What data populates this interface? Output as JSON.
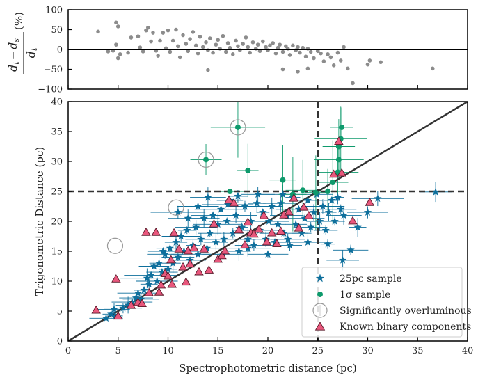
{
  "chart_data": [
    {
      "panel": "residuals",
      "type": "scatter",
      "ylabel": "d_t − d_s / d_t (%)",
      "ylabel_parts": {
        "numerator": "d",
        "num_sub1": "t",
        "minus": "−",
        "num_d2": "d",
        "num_sub2": "s",
        "denominator": "d",
        "den_sub": "t",
        "unit": "(%)"
      },
      "xlim": [
        0,
        40
      ],
      "ylim": [
        -100,
        100
      ],
      "yticks": [
        100,
        50,
        0,
        -50,
        -100
      ],
      "ytick_labels": [
        "100",
        "50",
        "0",
        "−50",
        "−100"
      ],
      "reference_line_y": 0,
      "colors": {
        "points": "#8c8c8c",
        "zero_line": "#000000"
      },
      "points": [
        [
          3,
          45
        ],
        [
          4,
          -5
        ],
        [
          4.5,
          -3
        ],
        [
          4.8,
          12
        ],
        [
          4.8,
          68
        ],
        [
          5,
          58
        ],
        [
          5,
          -22
        ],
        [
          5.2,
          -12
        ],
        [
          6,
          -8
        ],
        [
          6.3,
          30
        ],
        [
          7,
          33
        ],
        [
          7.2,
          5
        ],
        [
          7.5,
          -5
        ],
        [
          7.8,
          48
        ],
        [
          8,
          55
        ],
        [
          8.3,
          20
        ],
        [
          8.5,
          42
        ],
        [
          8.8,
          -3
        ],
        [
          9,
          -16
        ],
        [
          9.2,
          22
        ],
        [
          9.5,
          42
        ],
        [
          9.8,
          3
        ],
        [
          10,
          48
        ],
        [
          10.2,
          -6
        ],
        [
          10.5,
          22
        ],
        [
          10.8,
          50
        ],
        [
          11,
          8
        ],
        [
          11.2,
          -20
        ],
        [
          11.5,
          36
        ],
        [
          11.8,
          14
        ],
        [
          12,
          -4
        ],
        [
          12.2,
          26
        ],
        [
          12.5,
          44
        ],
        [
          12.8,
          10
        ],
        [
          13,
          -10
        ],
        [
          13.2,
          32
        ],
        [
          13.5,
          6
        ],
        [
          13.8,
          18
        ],
        [
          14,
          -2
        ],
        [
          14.2,
          28
        ],
        [
          14.5,
          -8
        ],
        [
          14.8,
          12
        ],
        [
          15,
          24
        ],
        [
          15.2,
          2
        ],
        [
          15.5,
          34
        ],
        [
          15.8,
          -6
        ],
        [
          16,
          16
        ],
        [
          16.2,
          4
        ],
        [
          16.5,
          -12
        ],
        [
          16.8,
          22
        ],
        [
          17,
          8
        ],
        [
          17.2,
          -2
        ],
        [
          17.5,
          14
        ],
        [
          17.8,
          30
        ],
        [
          18,
          6
        ],
        [
          18.2,
          -8
        ],
        [
          18.5,
          18
        ],
        [
          18.8,
          2
        ],
        [
          19,
          12
        ],
        [
          19.2,
          -4
        ],
        [
          19.5,
          20
        ],
        [
          19.8,
          6
        ],
        [
          20,
          -2
        ],
        [
          20.2,
          10
        ],
        [
          20.5,
          16
        ],
        [
          20.8,
          -10
        ],
        [
          21,
          4
        ],
        [
          21.2,
          12
        ],
        [
          21.5,
          -6
        ],
        [
          21.8,
          8
        ],
        [
          22,
          2
        ],
        [
          22.2,
          -14
        ],
        [
          22.5,
          10
        ],
        [
          22.8,
          -2
        ],
        [
          23,
          6
        ],
        [
          23.2,
          -8
        ],
        [
          23.5,
          4
        ],
        [
          23.8,
          -18
        ],
        [
          24,
          2
        ],
        [
          24.3,
          -6
        ],
        [
          24.6,
          -22
        ],
        [
          25,
          -4
        ],
        [
          25.3,
          -10
        ],
        [
          25.6,
          -30
        ],
        [
          26,
          -12
        ],
        [
          26.3,
          -20
        ],
        [
          26.6,
          -40
        ],
        [
          27,
          -8
        ],
        [
          27.3,
          -28
        ],
        [
          27.6,
          6
        ],
        [
          28,
          -48
        ],
        [
          28.5,
          -85
        ],
        [
          30,
          -38
        ],
        [
          30.2,
          -28
        ],
        [
          31.3,
          -32
        ],
        [
          36.5,
          -48
        ],
        [
          14,
          -52
        ],
        [
          21.5,
          -50
        ],
        [
          23,
          -56
        ],
        [
          24,
          -48
        ]
      ]
    },
    {
      "panel": "main",
      "type": "scatter",
      "xlabel": "Spectrophotometric distance (pc)",
      "ylabel": "Trigonometric Distance (pc)",
      "xlim": [
        0,
        40
      ],
      "ylim": [
        0,
        40
      ],
      "xticks": [
        0,
        5,
        10,
        15,
        20,
        25,
        30,
        35,
        40
      ],
      "yticks": [
        0,
        5,
        10,
        15,
        20,
        25,
        30,
        35,
        40
      ],
      "one_to_one_line": true,
      "cut_lines": {
        "x": 25,
        "y": 25
      },
      "legend_position": "lower-right",
      "colors": {
        "sample_25pc": "#0e6f9c",
        "sample_1sigma": "#0e9a6c",
        "binary": "#e8577c",
        "binary_edge": "#5a1a2a",
        "overluminous": "#999999",
        "line": "#333333"
      },
      "series": [
        {
          "name": "25pc sample",
          "marker": "star",
          "points": [
            [
              3.8,
              3.8
            ],
            [
              4.3,
              4.5
            ],
            [
              4.6,
              5.3
            ],
            [
              4.7,
              4.2
            ],
            [
              5.5,
              5.5
            ],
            [
              6,
              6
            ],
            [
              6.4,
              6.5
            ],
            [
              6.8,
              7.2
            ],
            [
              7,
              8
            ],
            [
              7.3,
              7
            ],
            [
              7.6,
              8.5
            ],
            [
              7.9,
              10.5
            ],
            [
              8.1,
              9.5
            ],
            [
              8.3,
              11
            ],
            [
              8.6,
              12.5
            ],
            [
              8.9,
              10
            ],
            [
              9.1,
              13
            ],
            [
              9.4,
              11.5
            ],
            [
              9.7,
              14.5
            ],
            [
              10,
              12
            ],
            [
              10.2,
              15.5
            ],
            [
              10.5,
              13
            ],
            [
              10.8,
              16.5
            ],
            [
              11,
              14
            ],
            [
              11.3,
              17.5
            ],
            [
              11.6,
              15
            ],
            [
              11.9,
              18.5
            ],
            [
              12.2,
              13.5
            ],
            [
              12.5,
              16
            ],
            [
              12.8,
              19
            ],
            [
              13,
              14.5
            ],
            [
              13.3,
              17
            ],
            [
              13.6,
              20.5
            ],
            [
              13.9,
              15.5
            ],
            [
              14.2,
              18
            ],
            [
              14.5,
              21
            ],
            [
              14.8,
              16.5
            ],
            [
              15,
              19.5
            ],
            [
              15.3,
              22
            ],
            [
              15.6,
              17
            ],
            [
              15.9,
              20
            ],
            [
              16.2,
              23.5
            ],
            [
              16.5,
              18
            ],
            [
              16.8,
              21
            ],
            [
              17.1,
              15
            ],
            [
              17.4,
              19
            ],
            [
              17.7,
              22.5
            ],
            [
              18,
              17
            ],
            [
              18.3,
              20
            ],
            [
              18.6,
              16
            ],
            [
              18.9,
              23
            ],
            [
              19.2,
              18.5
            ],
            [
              19.5,
              21.5
            ],
            [
              19.8,
              17
            ],
            [
              20.1,
              20
            ],
            [
              20.4,
              22.5
            ],
            [
              20.7,
              16.5
            ],
            [
              21,
              19.5
            ],
            [
              21.3,
              23
            ],
            [
              21.6,
              18
            ],
            [
              21.9,
              21
            ],
            [
              22.2,
              16
            ],
            [
              22.5,
              24
            ],
            [
              22.8,
              19.5
            ],
            [
              23.1,
              22
            ],
            [
              23.4,
              18
            ],
            [
              23.7,
              20.5
            ],
            [
              24,
              23.5
            ],
            [
              24.3,
              19
            ],
            [
              24.6,
              21.5
            ],
            [
              24.9,
              24.5
            ],
            [
              25.2,
              20
            ],
            [
              25.5,
              22.5
            ],
            [
              25.8,
              18.5
            ],
            [
              26.1,
              21.5
            ],
            [
              26.4,
              23.5
            ],
            [
              26.7,
              20
            ],
            [
              27,
              24
            ],
            [
              27.3,
              22
            ],
            [
              27.6,
              21
            ],
            [
              28.3,
              15.2
            ],
            [
              29,
              19
            ],
            [
              30,
              21.5
            ],
            [
              31,
              23.8
            ],
            [
              36.8,
              24.9
            ],
            [
              16,
              22.8
            ],
            [
              19,
              24.5
            ],
            [
              21.5,
              24.5
            ],
            [
              14,
              24
            ],
            [
              12,
              20.5
            ],
            [
              9.5,
              15
            ],
            [
              11,
              21.5
            ],
            [
              15.5,
              14.5
            ],
            [
              18,
              15.5
            ],
            [
              22,
              17
            ],
            [
              24,
              16.5
            ],
            [
              26,
              16.2
            ],
            [
              27.5,
              13.5
            ],
            [
              20,
              14.5
            ],
            [
              13,
              22.5
            ],
            [
              17,
              24.2
            ]
          ]
        },
        {
          "name": "1σ sample",
          "marker": "circle",
          "points": [
            [
              13.8,
              30.3
            ],
            [
              17,
              35.7
            ],
            [
              18,
              28.5
            ],
            [
              21.5,
              26.9
            ],
            [
              22.5,
              24.5
            ],
            [
              26.5,
              26.5
            ],
            [
              27,
              28.2
            ],
            [
              27.1,
              30.3
            ],
            [
              27.1,
              32.5
            ],
            [
              27.3,
              33.8
            ],
            [
              27.4,
              35.7
            ],
            [
              26,
              25
            ],
            [
              23.5,
              25.2
            ],
            [
              16.2,
              25
            ],
            [
              24.8,
              24.8
            ]
          ]
        },
        {
          "name": "Significantly overluminous",
          "marker": "open-circle",
          "points": [
            [
              4.7,
              15.9
            ],
            [
              10.8,
              22.3
            ],
            [
              13.8,
              30.3
            ],
            [
              17,
              35.7
            ]
          ]
        },
        {
          "name": "Known binary components",
          "marker": "triangle",
          "points": [
            [
              2.8,
              5.1
            ],
            [
              4.8,
              10.3
            ],
            [
              5,
              4.1
            ],
            [
              6.3,
              5.9
            ],
            [
              7,
              6.4
            ],
            [
              7.4,
              6.2
            ],
            [
              7.8,
              18.1
            ],
            [
              8.1,
              8
            ],
            [
              8.8,
              18.1
            ],
            [
              9.1,
              8.1
            ],
            [
              9.7,
              11.2
            ],
            [
              10,
              10.8
            ],
            [
              10.3,
              13.5
            ],
            [
              10.6,
              18
            ],
            [
              11.1,
              15.3
            ],
            [
              11.5,
              12.3
            ],
            [
              11.8,
              9.8
            ],
            [
              12,
              15
            ],
            [
              12.6,
              15.5
            ],
            [
              13.1,
              11.5
            ],
            [
              13.6,
              15.3
            ],
            [
              14.1,
              11.8
            ],
            [
              14.6,
              19.5
            ],
            [
              15,
              13.6
            ],
            [
              15.4,
              14.2
            ],
            [
              16.1,
              23.5
            ],
            [
              16.6,
              23
            ],
            [
              17.1,
              18.5
            ],
            [
              17.7,
              16
            ],
            [
              18,
              19.8
            ],
            [
              18.3,
              18
            ],
            [
              18.6,
              17.8
            ],
            [
              19.1,
              18.6
            ],
            [
              19.6,
              20.9
            ],
            [
              19.9,
              16.5
            ],
            [
              20.4,
              18
            ],
            [
              20.9,
              16.2
            ],
            [
              21.3,
              18.3
            ],
            [
              21.6,
              21
            ],
            [
              22.1,
              21.5
            ],
            [
              22.6,
              23.8
            ],
            [
              23.1,
              18.8
            ],
            [
              23.6,
              22.3
            ],
            [
              24.1,
              20.9
            ],
            [
              26.6,
              27.8
            ],
            [
              27.1,
              33.3
            ],
            [
              27.4,
              28
            ],
            [
              28.5,
              20
            ],
            [
              30.2,
              23.1
            ],
            [
              15.7,
              15
            ],
            [
              12.2,
              12.8
            ],
            [
              9.3,
              9.3
            ],
            [
              10.4,
              9.4
            ]
          ]
        }
      ]
    }
  ]
}
